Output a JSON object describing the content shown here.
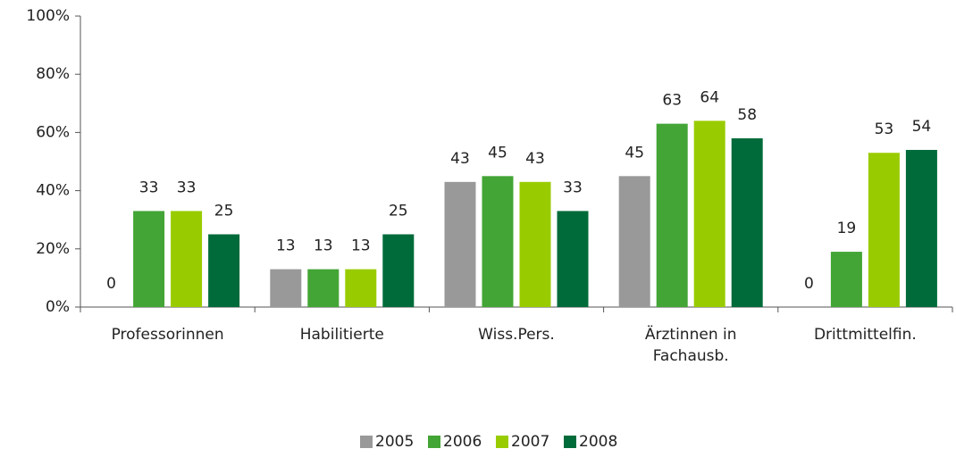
{
  "chart_data": {
    "type": "bar",
    "categories": [
      "Professorinnen",
      "Habilitierte",
      "Wiss.Pers.",
      "Ärztinnen in Fachausb.",
      "Drittmittelfin."
    ],
    "series": [
      {
        "name": "2005",
        "color": "#999999",
        "values": [
          0,
          13,
          43,
          45,
          0
        ]
      },
      {
        "name": "2006",
        "color": "#43a535",
        "values": [
          33,
          13,
          45,
          63,
          19
        ]
      },
      {
        "name": "2007",
        "color": "#99cc00",
        "values": [
          33,
          13,
          43,
          64,
          53
        ]
      },
      {
        "name": "2008",
        "color": "#006b3a",
        "values": [
          25,
          25,
          33,
          58,
          54
        ]
      }
    ],
    "ylim": [
      0,
      100
    ],
    "yticks": [
      {
        "value": 0,
        "label": "0%"
      },
      {
        "value": 20,
        "label": "20%"
      },
      {
        "value": 40,
        "label": "40%"
      },
      {
        "value": 60,
        "label": "60%"
      },
      {
        "value": 80,
        "label": "80%"
      },
      {
        "value": 100,
        "label": "100%"
      }
    ],
    "legend": "bottom"
  }
}
